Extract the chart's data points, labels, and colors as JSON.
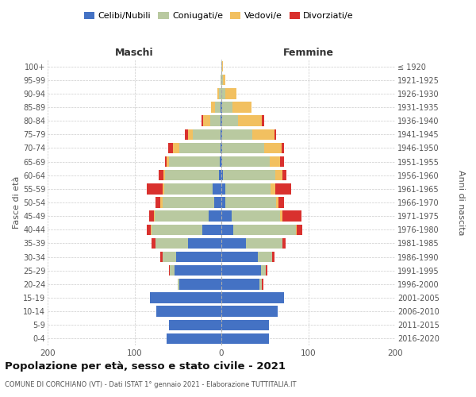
{
  "age_groups_bottom_to_top": [
    "0-4",
    "5-9",
    "10-14",
    "15-19",
    "20-24",
    "25-29",
    "30-34",
    "35-39",
    "40-44",
    "45-49",
    "50-54",
    "55-59",
    "60-64",
    "65-69",
    "70-74",
    "75-79",
    "80-84",
    "85-89",
    "90-94",
    "95-99",
    "100+"
  ],
  "birth_years_bottom_to_top": [
    "2016-2020",
    "2011-2015",
    "2006-2010",
    "2001-2005",
    "1996-2000",
    "1991-1995",
    "1986-1990",
    "1981-1985",
    "1976-1980",
    "1971-1975",
    "1966-1970",
    "1961-1965",
    "1956-1960",
    "1951-1955",
    "1946-1950",
    "1941-1945",
    "1936-1940",
    "1931-1935",
    "1926-1930",
    "1921-1925",
    "≤ 1920"
  ],
  "male_single": [
    63,
    60,
    75,
    82,
    48,
    54,
    52,
    38,
    22,
    15,
    8,
    10,
    3,
    2,
    1,
    1,
    1,
    1,
    0,
    0,
    0
  ],
  "male_married": [
    0,
    0,
    0,
    0,
    2,
    5,
    16,
    38,
    58,
    62,
    60,
    56,
    62,
    58,
    47,
    32,
    12,
    6,
    3,
    1,
    0
  ],
  "male_widowed": [
    0,
    0,
    0,
    0,
    0,
    0,
    0,
    0,
    1,
    1,
    2,
    2,
    2,
    3,
    8,
    5,
    8,
    5,
    2,
    0,
    0
  ],
  "male_divorced": [
    0,
    0,
    0,
    0,
    0,
    1,
    2,
    4,
    5,
    5,
    6,
    18,
    5,
    2,
    5,
    4,
    2,
    0,
    0,
    0,
    0
  ],
  "female_single": [
    55,
    55,
    65,
    72,
    44,
    46,
    42,
    28,
    14,
    12,
    5,
    5,
    2,
    1,
    1,
    1,
    1,
    1,
    0,
    0,
    0
  ],
  "female_married": [
    0,
    0,
    0,
    0,
    3,
    5,
    16,
    42,
    72,
    56,
    58,
    52,
    60,
    55,
    48,
    35,
    18,
    12,
    5,
    2,
    1
  ],
  "female_widowed": [
    0,
    0,
    0,
    0,
    0,
    0,
    0,
    0,
    1,
    2,
    3,
    5,
    8,
    12,
    20,
    25,
    28,
    22,
    12,
    3,
    1
  ],
  "female_divorced": [
    0,
    0,
    0,
    0,
    1,
    2,
    3,
    4,
    6,
    22,
    6,
    18,
    5,
    4,
    3,
    2,
    2,
    0,
    0,
    0,
    0
  ],
  "color_single": "#4472c4",
  "color_married": "#b9c9a0",
  "color_widowed": "#f2c060",
  "color_divorced": "#d9312e",
  "title": "Popolazione per età, sesso e stato civile - 2021",
  "subtitle": "COMUNE DI CORCHIANO (VT) - Dati ISTAT 1° gennaio 2021 - Elaborazione TUTTITALIA.IT",
  "xlabel_left": "Maschi",
  "xlabel_right": "Femmine",
  "ylabel_left": "Fasce di età",
  "ylabel_right": "Anni di nascita",
  "xlim": 200
}
